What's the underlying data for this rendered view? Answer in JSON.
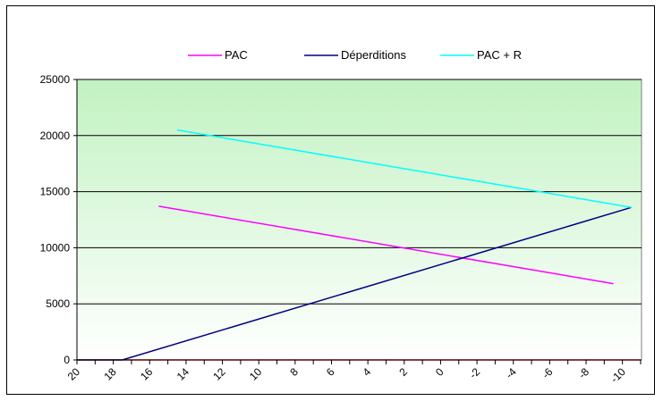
{
  "chart_data": {
    "type": "line",
    "title": "",
    "xlabel": "",
    "ylabel": "",
    "x": [
      20,
      19,
      18,
      17,
      16,
      15,
      14,
      13,
      12,
      11,
      10,
      9,
      8,
      7,
      6,
      5,
      4,
      3,
      2,
      1,
      0,
      -1,
      -2,
      -3,
      -4,
      -5,
      -6,
      -7,
      -8,
      -9,
      -10,
      -11
    ],
    "x_tick_labels": [
      "20",
      "18",
      "16",
      "14",
      "12",
      "10",
      "8",
      "6",
      "4",
      "2",
      "0",
      "-2",
      "-4",
      "-6",
      "-8",
      "-10"
    ],
    "x_reversed": true,
    "ylim": [
      0,
      25000
    ],
    "y_tick_labels": [
      "0",
      "5000",
      "10000",
      "15000",
      "20000",
      "25000"
    ],
    "grid": "horizontal",
    "legend_position": "top",
    "series": [
      {
        "name": "PAC",
        "color": "#ff00ff",
        "points": [
          [
            15.5,
            13700
          ],
          [
            -9.5,
            6800
          ]
        ]
      },
      {
        "name": "Déperditions",
        "color": "#000080",
        "points": [
          [
            20,
            0
          ],
          [
            17.5,
            0
          ],
          [
            -10.5,
            13600
          ]
        ]
      },
      {
        "name": "PAC + R",
        "color": "#00ffff",
        "points": [
          [
            14.5,
            20500
          ],
          [
            -10.5,
            13600
          ]
        ]
      }
    ],
    "baseline": {
      "color": "#ff0000",
      "points": [
        [
          20,
          0
        ],
        [
          -11,
          0
        ]
      ]
    }
  }
}
